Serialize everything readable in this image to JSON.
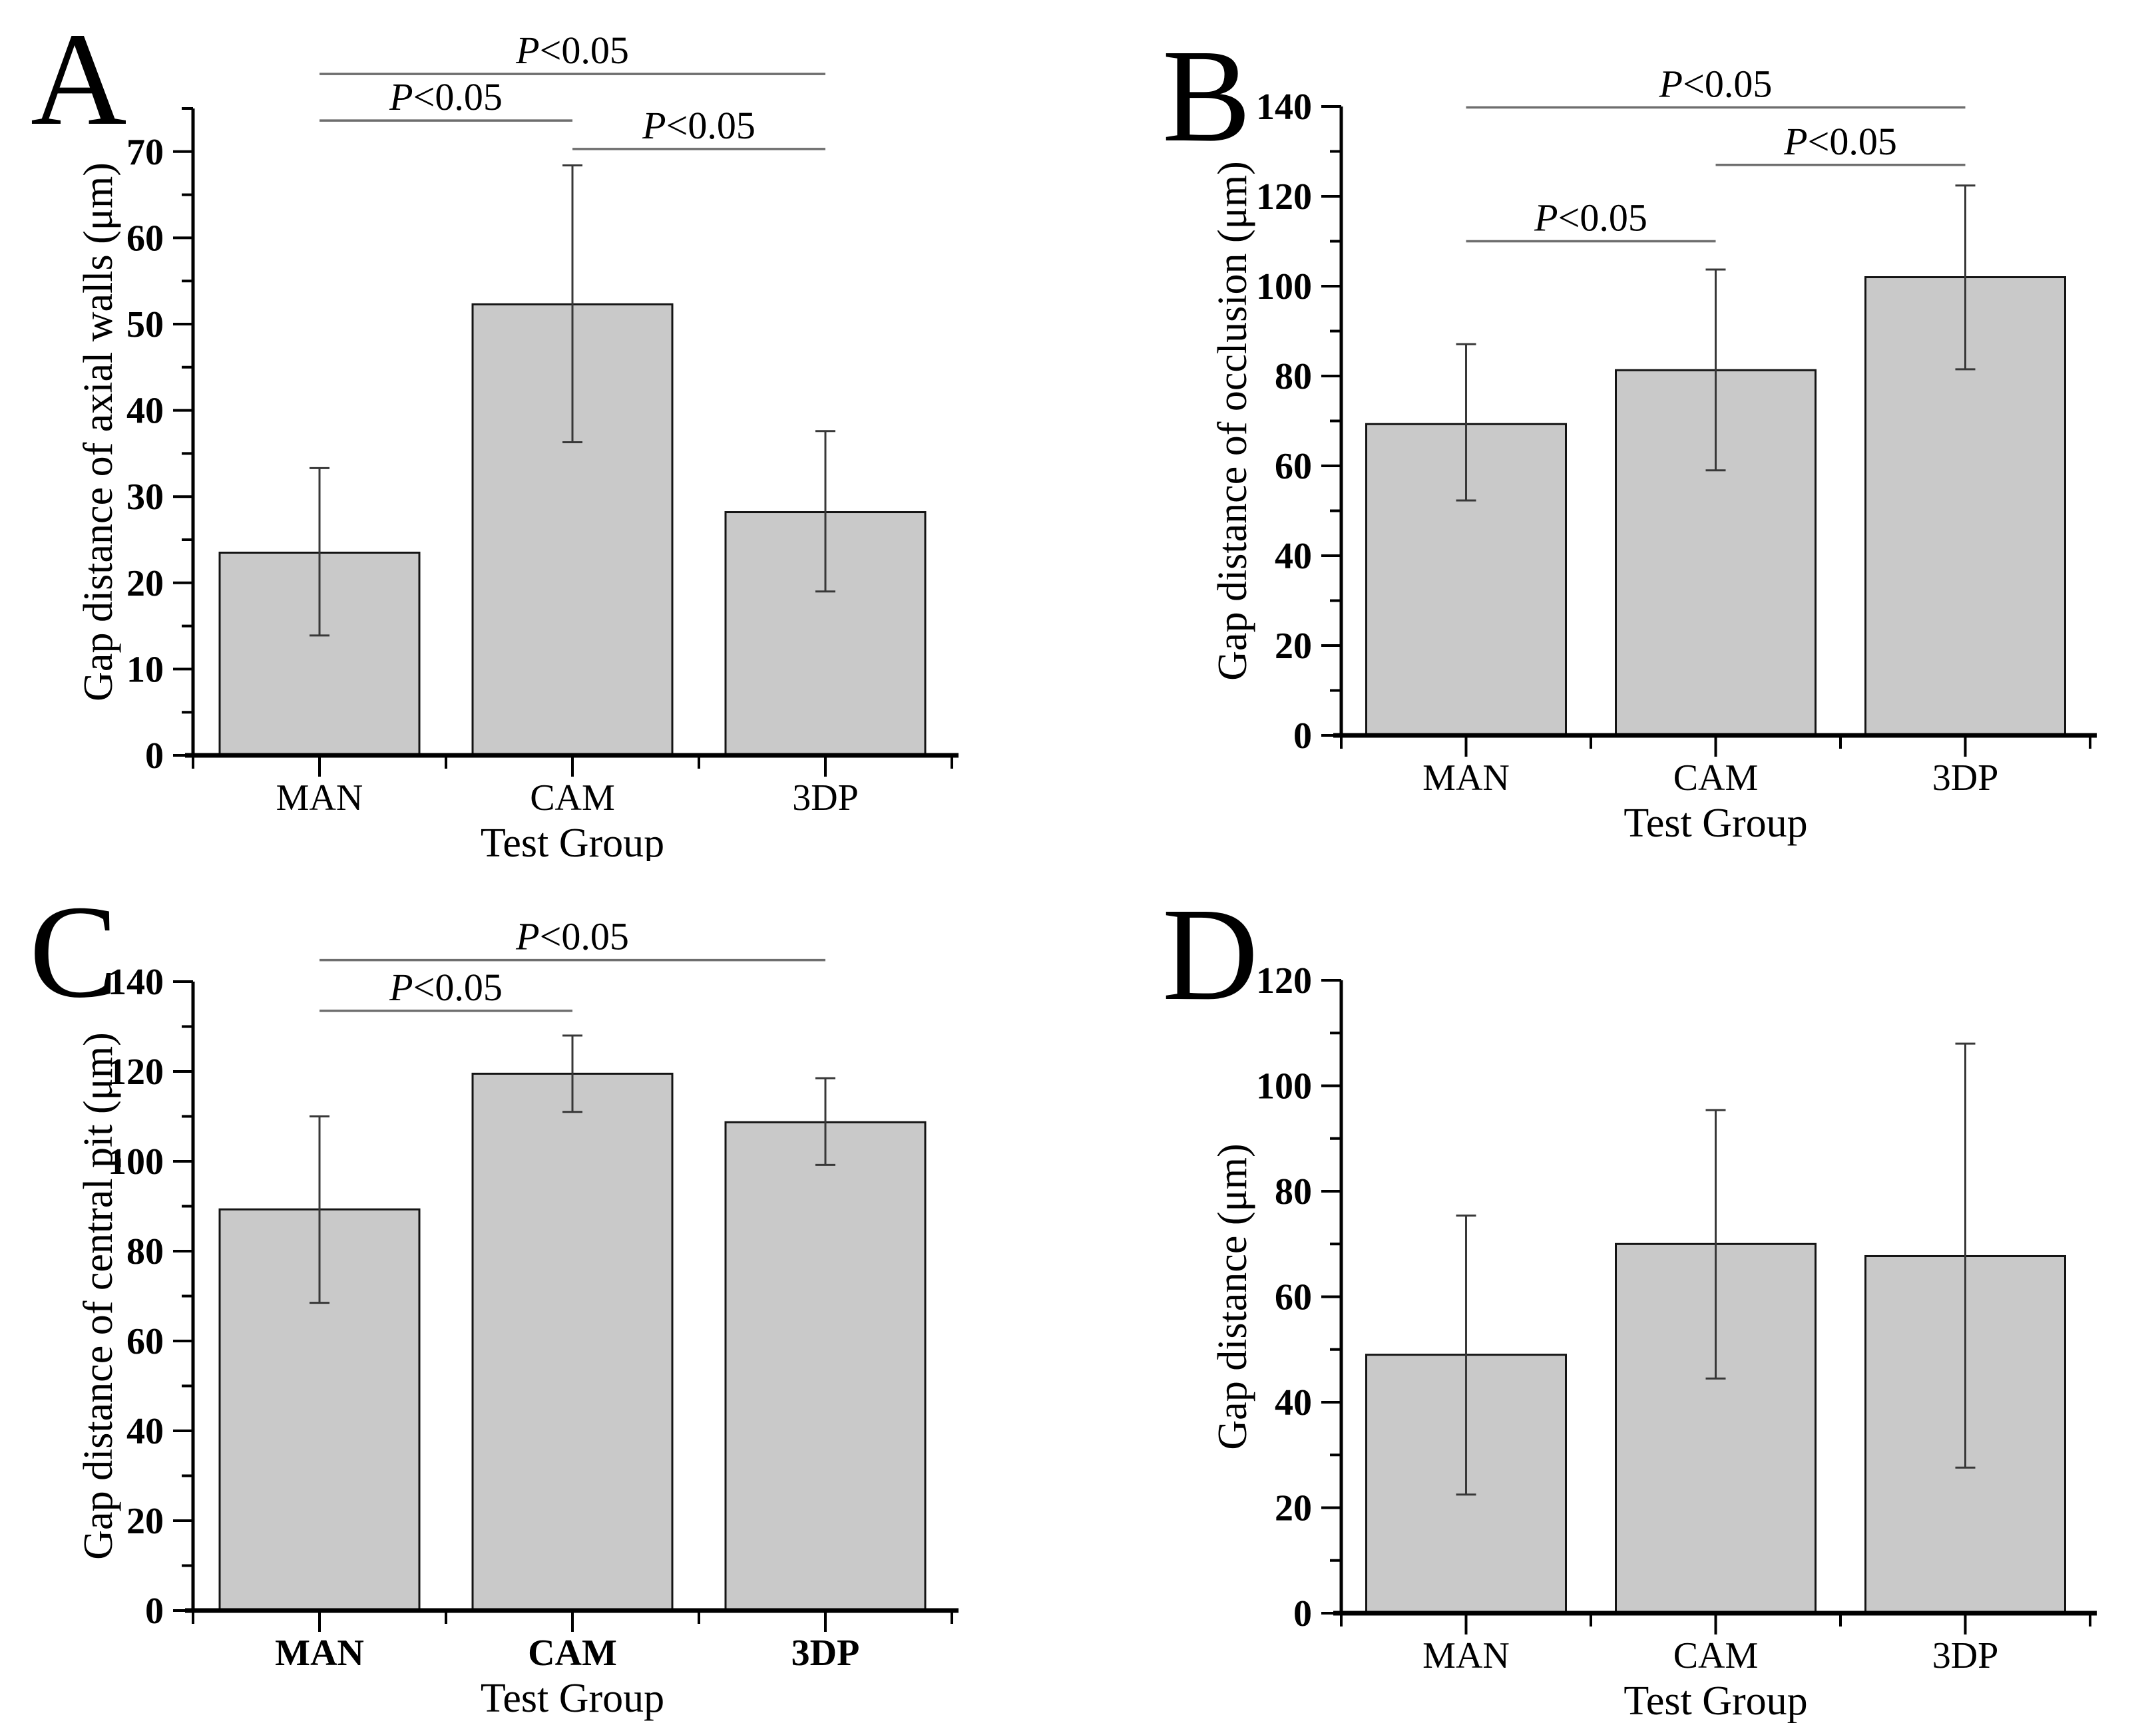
{
  "figure": {
    "background": "#ffffff",
    "bar_fill": "#c9c9c9",
    "bar_stroke": "#141414",
    "error_color": "#383838",
    "bracket_color": "#6e6e6e",
    "axis_color": "#000000",
    "text_color": "#000000"
  },
  "chart_data": [
    {
      "panel": "A",
      "type": "bar",
      "categories": [
        "MAN",
        "CAM",
        "3DP"
      ],
      "values": [
        23.5,
        52.3,
        28.2
      ],
      "error_low": [
        13.9,
        36.3,
        19.0
      ],
      "error_high": [
        33.3,
        68.4,
        37.6
      ],
      "title": "",
      "xlabel": "Test Group",
      "ylabel": "Gap distance of axial walls (μm)",
      "ylim": [
        0,
        75
      ],
      "ytick_major": 10,
      "ytick_minor": 5,
      "grid": false,
      "bold_categories": false,
      "significance": [
        {
          "from": "MAN",
          "to": "3DP",
          "label": "P<0.05",
          "level": 79.0
        },
        {
          "from": "MAN",
          "to": "CAM",
          "label": "P<0.05",
          "level": 73.6
        },
        {
          "from": "CAM",
          "to": "3DP",
          "label": "P<0.05",
          "level": 70.3
        }
      ]
    },
    {
      "panel": "B",
      "type": "bar",
      "categories": [
        "MAN",
        "CAM",
        "3DP"
      ],
      "values": [
        69.3,
        81.3,
        102.0
      ],
      "error_low": [
        52.3,
        59.0,
        81.5
      ],
      "error_high": [
        87.1,
        103.7,
        122.4
      ],
      "title": "",
      "xlabel": "Test Group",
      "ylabel": "Gap distance of occlusion (μm)",
      "ylim": [
        0,
        140
      ],
      "ytick_major": 20,
      "ytick_minor": 10,
      "grid": false,
      "bold_categories": false,
      "significance": [
        {
          "from": "MAN",
          "to": "3DP",
          "label": "P<0.05",
          "level": 139.8
        },
        {
          "from": "CAM",
          "to": "3DP",
          "label": "P<0.05",
          "level": 127.0
        },
        {
          "from": "MAN",
          "to": "CAM",
          "label": "P<0.05",
          "level": 110.0
        }
      ]
    },
    {
      "panel": "C",
      "type": "bar",
      "categories": [
        "MAN",
        "CAM",
        "3DP"
      ],
      "values": [
        89.3,
        119.5,
        108.7
      ],
      "error_low": [
        68.5,
        111.0,
        99.2
      ],
      "error_high": [
        110.0,
        128.0,
        118.5
      ],
      "title": "",
      "xlabel": "Test Group",
      "ylabel": "Gap distance of central pit (μm)",
      "ylim": [
        0,
        140
      ],
      "ytick_major": 20,
      "ytick_minor": 10,
      "grid": false,
      "bold_categories": true,
      "significance": [
        {
          "from": "MAN",
          "to": "3DP",
          "label": "P<0.05",
          "level": 144.8
        },
        {
          "from": "MAN",
          "to": "CAM",
          "label": "P<0.05",
          "level": 133.5
        }
      ]
    },
    {
      "panel": "D",
      "type": "bar",
      "categories": [
        "MAN",
        "CAM",
        "3DP"
      ],
      "values": [
        49.0,
        70.0,
        67.7
      ],
      "error_low": [
        22.5,
        44.5,
        27.6
      ],
      "error_high": [
        75.4,
        95.4,
        108.0
      ],
      "title": "",
      "xlabel": "Test Group",
      "ylabel": "Gap distance (μm)",
      "ylim": [
        0,
        120
      ],
      "ytick_major": 20,
      "ytick_minor": 10,
      "grid": false,
      "bold_categories": false,
      "significance": []
    }
  ]
}
